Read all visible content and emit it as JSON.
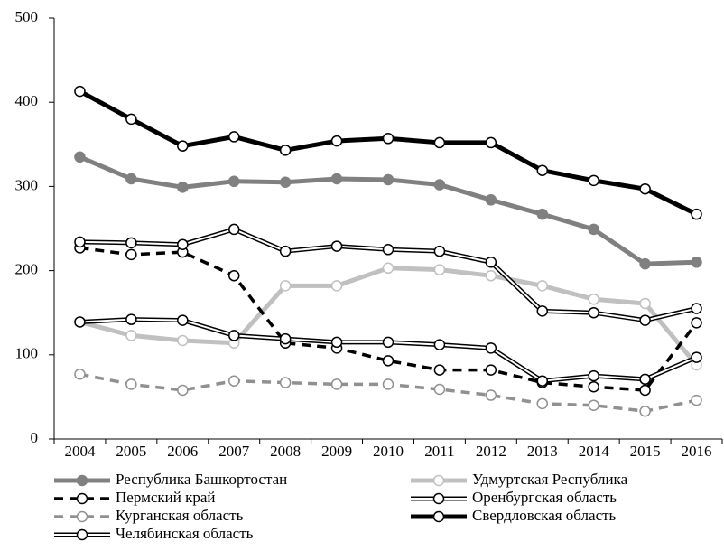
{
  "chart_data": {
    "type": "line",
    "categories": [
      "2004",
      "2005",
      "2006",
      "2007",
      "2008",
      "2009",
      "2010",
      "2011",
      "2012",
      "2013",
      "2014",
      "2015",
      "2016"
    ],
    "ylim": [
      0,
      500
    ],
    "yticks": [
      0,
      100,
      200,
      300,
      400,
      500
    ],
    "series": [
      {
        "name": "Республика Башкортостан",
        "color": "#808080",
        "line_style": "solid",
        "marker": "filled",
        "values": [
          335,
          309,
          299,
          306,
          305,
          309,
          308,
          302,
          284,
          267,
          249,
          208,
          210
        ]
      },
      {
        "name": "Удмуртская Республика",
        "color": "#c0c0c0",
        "line_style": "solid",
        "marker": "open",
        "values": [
          139,
          123,
          117,
          114,
          182,
          182,
          203,
          201,
          194,
          182,
          166,
          161,
          88
        ]
      },
      {
        "name": "Пермский край",
        "color": "#000000",
        "line_style": "dashed",
        "marker": "open",
        "values": [
          227,
          219,
          222,
          194,
          114,
          108,
          93,
          82,
          82,
          67,
          62,
          58,
          138
        ]
      },
      {
        "name": "Оренбургская область",
        "color": "#000000",
        "line_style": "double",
        "marker": "open",
        "values": [
          234,
          233,
          231,
          249,
          223,
          229,
          225,
          223,
          210,
          152,
          150,
          141,
          155
        ]
      },
      {
        "name": "Курганская область",
        "color": "#909090",
        "line_style": "dashed",
        "marker": "open",
        "values": [
          77,
          65,
          58,
          69,
          67,
          65,
          65,
          59,
          52,
          42,
          40,
          33,
          46
        ]
      },
      {
        "name": "Свердловская область",
        "color": "#000000",
        "line_style": "solid",
        "marker": "open",
        "values": [
          413,
          380,
          348,
          359,
          343,
          354,
          357,
          352,
          352,
          319,
          307,
          297,
          267
        ]
      },
      {
        "name": "Челябинская область",
        "color": "#000000",
        "line_style": "double",
        "marker": "open",
        "values": [
          139,
          142,
          141,
          123,
          119,
          115,
          115,
          112,
          108,
          69,
          75,
          71,
          97
        ]
      }
    ]
  }
}
